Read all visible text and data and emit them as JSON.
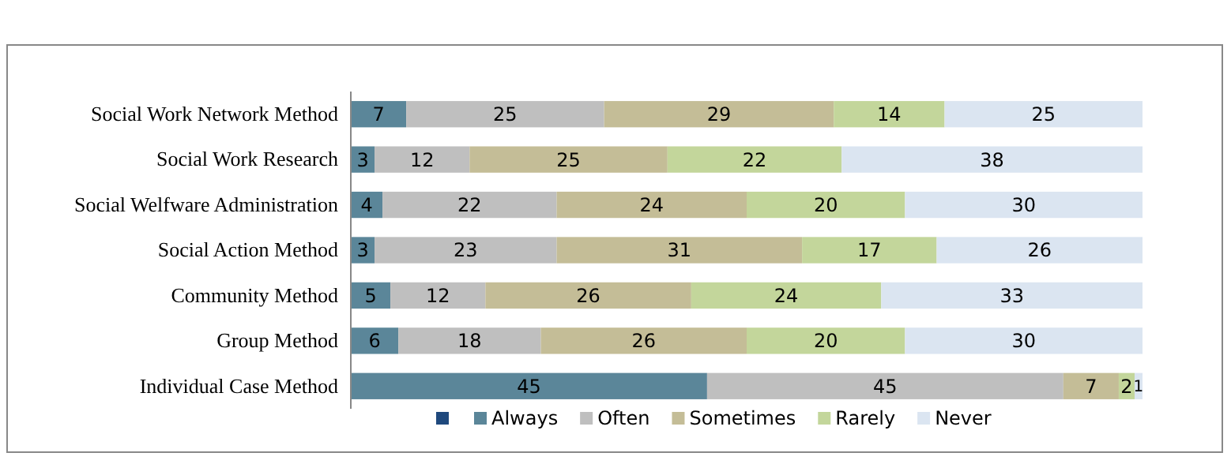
{
  "chart_data": {
    "type": "bar",
    "orientation": "horizontal",
    "stacked": true,
    "data_labels": true,
    "legend": "bottom",
    "tick_labels": "y",
    "grid": false,
    "xlim": [
      0,
      100
    ],
    "categories": [
      "Social Work Network Method",
      "Social Work Research",
      "Social Welfware Administration",
      "Social Action Method",
      "Community Method",
      "Group Method",
      "Individual Case Method"
    ],
    "series": [
      {
        "name": "Always",
        "color": "#5b8699",
        "values": [
          7,
          3,
          4,
          3,
          5,
          6,
          45
        ]
      },
      {
        "name": "Often",
        "color": "#bfbfbf",
        "values": [
          25,
          12,
          22,
          23,
          12,
          18,
          45
        ]
      },
      {
        "name": "Sometimes",
        "color": "#c4bd97",
        "values": [
          29,
          25,
          24,
          31,
          26,
          26,
          7
        ]
      },
      {
        "name": "Rarely",
        "color": "#c3d69b",
        "values": [
          14,
          22,
          20,
          17,
          24,
          20,
          2
        ]
      },
      {
        "name": "Never",
        "color": "#dbe5f1",
        "values": [
          25,
          38,
          30,
          26,
          33,
          30,
          1
        ]
      }
    ]
  }
}
